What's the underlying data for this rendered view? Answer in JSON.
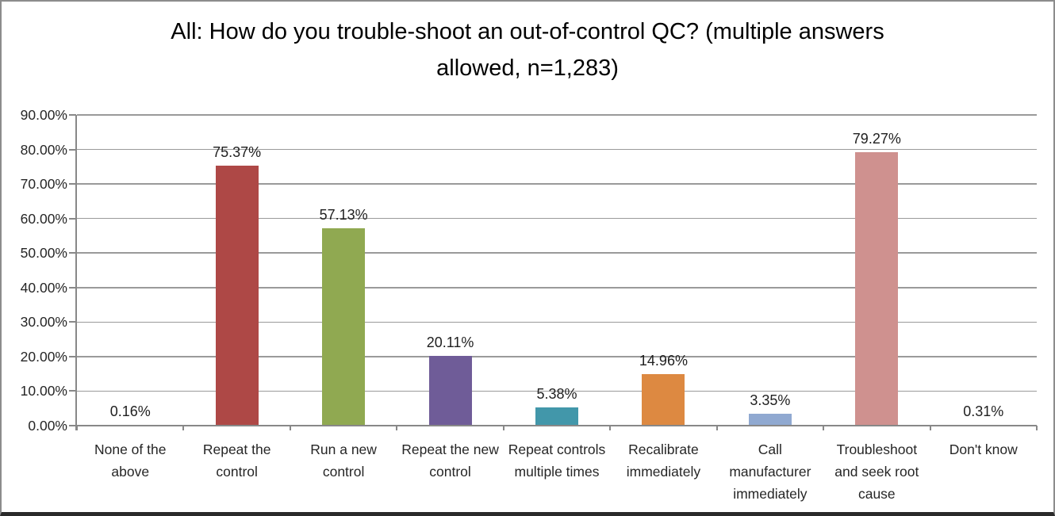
{
  "chart_data": {
    "type": "bar",
    "title": "All: How do you trouble-shoot an out-of-control QC? (multiple answers allowed, n=1,283)",
    "categories": [
      "None of the above",
      "Repeat the control",
      "Run a new control",
      "Repeat the new control",
      "Repeat controls multiple times",
      "Recalibrate immediately",
      "Call manufacturer immediately",
      "Troubleshoot and seek root cause",
      "Don't know"
    ],
    "category_label_lines": [
      [
        "None of the",
        "above"
      ],
      [
        "Repeat the",
        "control"
      ],
      [
        "Run a new",
        "control"
      ],
      [
        "Repeat the new",
        "control"
      ],
      [
        "Repeat controls",
        "multiple times"
      ],
      [
        "Recalibrate",
        "immediately"
      ],
      [
        "Call",
        "manufacturer",
        "immediately"
      ],
      [
        "Troubleshoot",
        "and seek root",
        "cause"
      ],
      [
        "Don't know"
      ]
    ],
    "values": [
      0.16,
      75.37,
      57.13,
      20.11,
      5.38,
      14.96,
      3.35,
      79.27,
      0.31
    ],
    "value_labels": [
      "0.16%",
      "75.37%",
      "57.13%",
      "20.11%",
      "5.38%",
      "14.96%",
      "3.35%",
      "79.27%",
      "0.31%"
    ],
    "bar_colors": [
      "#4f81bd",
      "#ae4846",
      "#90a951",
      "#6f5c98",
      "#4297aa",
      "#dd8941",
      "#90a9d1",
      "#cf918f",
      "#c3d69b"
    ],
    "xlabel": "",
    "ylabel": "",
    "ylim": [
      0,
      90
    ],
    "ytick_step": 10,
    "ytick_labels": [
      "0.00%",
      "10.00%",
      "20.00%",
      "30.00%",
      "40.00%",
      "50.00%",
      "60.00%",
      "70.00%",
      "80.00%",
      "90.00%"
    ],
    "grid": true,
    "legend": "none",
    "gridline_color": "#9a9a9a",
    "axis_color": "#888888",
    "background_color": "#ffffff"
  }
}
